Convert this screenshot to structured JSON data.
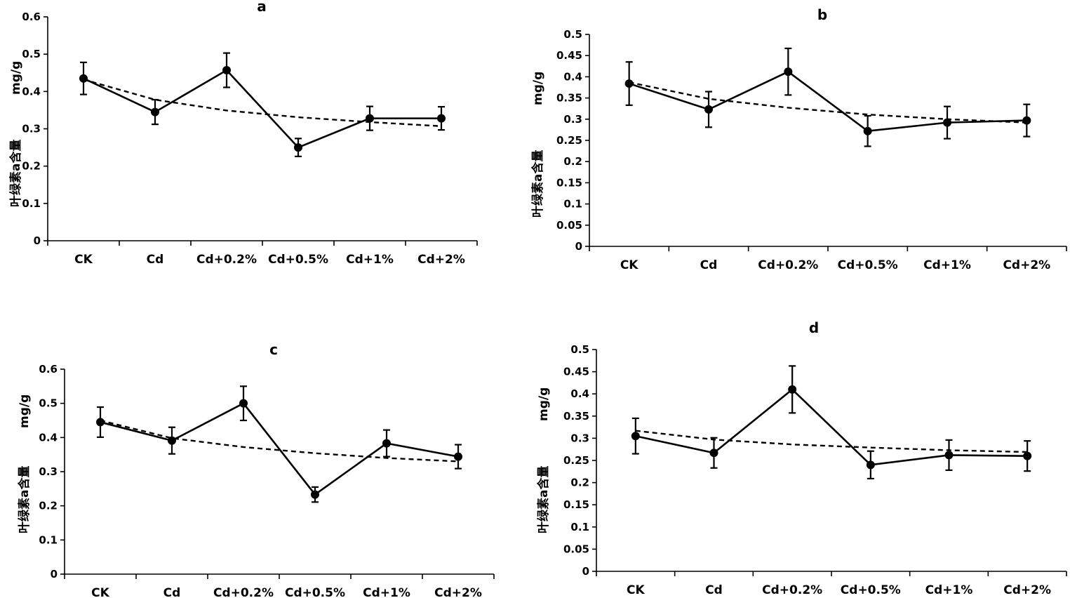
{
  "chart_data": [
    {
      "type": "line",
      "title": "a",
      "ylabel_unit": "mg/g",
      "ylabel_text": "叶绿素a含量",
      "categories": [
        "CK",
        "Cd",
        "Cd+0.2%",
        "Cd+0.5%",
        "Cd+1%",
        "Cd+2%"
      ],
      "values": [
        0.435,
        0.345,
        0.457,
        0.25,
        0.328,
        0.328
      ],
      "errors": [
        0.043,
        0.033,
        0.046,
        0.024,
        0.032,
        0.031
      ],
      "trend": [
        0.432,
        0.378,
        0.349,
        0.331,
        0.318,
        0.307
      ],
      "ylim": [
        0,
        0.6
      ],
      "yticks": [
        "0",
        "0.1",
        "0.2",
        "0.3",
        "0.4",
        "0.5",
        "0.6"
      ]
    },
    {
      "type": "line",
      "title": "b",
      "ylabel_unit": "mg/g",
      "ylabel_text": "叶绿素a含量",
      "categories": [
        "CK",
        "Cd",
        "Cd+0.2%",
        "Cd+0.5%",
        "Cd+1%",
        "Cd+2%"
      ],
      "values": [
        0.384,
        0.323,
        0.412,
        0.272,
        0.292,
        0.297
      ],
      "errors": [
        0.051,
        0.042,
        0.055,
        0.036,
        0.038,
        0.038
      ],
      "trend": [
        0.387,
        0.348,
        0.327,
        0.311,
        0.3,
        0.292
      ],
      "ylim": [
        0,
        0.5
      ],
      "yticks": [
        "0",
        "0.05",
        "0.1",
        "0.15",
        "0.2",
        "0.25",
        "0.3",
        "0.35",
        "0.4",
        "0.45",
        "0.5"
      ]
    },
    {
      "type": "line",
      "title": "c",
      "ylabel_unit": "mg/g",
      "ylabel_text": "叶绿素a含量",
      "categories": [
        "CK",
        "Cd",
        "Cd+0.2%",
        "Cd+0.5%",
        "Cd+1%",
        "Cd+2%"
      ],
      "values": [
        0.445,
        0.391,
        0.5,
        0.233,
        0.383,
        0.344
      ],
      "errors": [
        0.044,
        0.039,
        0.05,
        0.022,
        0.039,
        0.035
      ],
      "trend": [
        0.45,
        0.398,
        0.372,
        0.354,
        0.34,
        0.33
      ],
      "ylim": [
        0,
        0.6
      ],
      "yticks": [
        "0",
        "0.1",
        "0.2",
        "0.3",
        "0.4",
        "0.5",
        "0.6"
      ]
    },
    {
      "type": "line",
      "title": "d",
      "ylabel_unit": "mg/g",
      "ylabel_text": "叶绿素a含量",
      "categories": [
        "CK",
        "Cd",
        "Cd+0.2%",
        "Cd+0.5%",
        "Cd+1%",
        "Cd+2%"
      ],
      "values": [
        0.305,
        0.267,
        0.41,
        0.24,
        0.262,
        0.26
      ],
      "errors": [
        0.04,
        0.034,
        0.053,
        0.031,
        0.034,
        0.034
      ],
      "trend": [
        0.317,
        0.297,
        0.286,
        0.279,
        0.273,
        0.269
      ],
      "ylim": [
        0,
        0.5
      ],
      "yticks": [
        "0",
        "0.05",
        "0.1",
        "0.15",
        "0.2",
        "0.25",
        "0.3",
        "0.35",
        "0.4",
        "0.45",
        "0.5"
      ]
    }
  ]
}
